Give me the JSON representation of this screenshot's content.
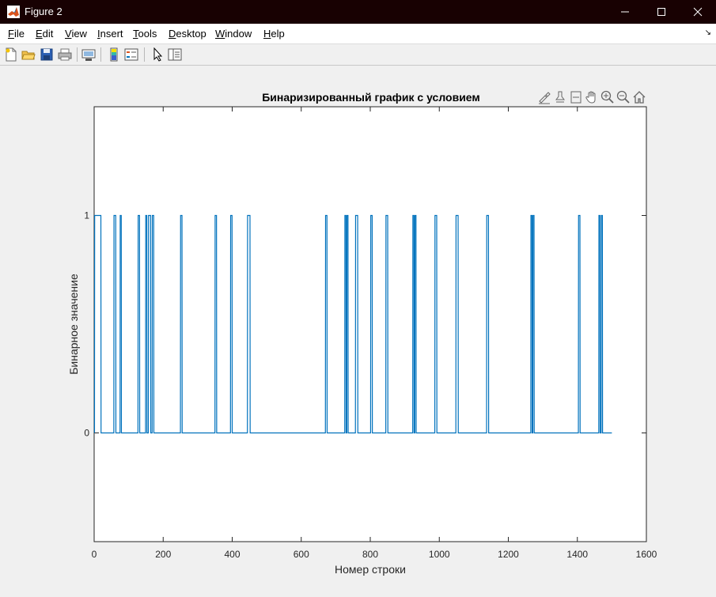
{
  "window": {
    "title": "Figure 2"
  },
  "menu": {
    "items": [
      {
        "label": "File",
        "key": "F",
        "rest": "ile"
      },
      {
        "label": "Edit",
        "key": "E",
        "rest": "dit"
      },
      {
        "label": "View",
        "key": "V",
        "rest": "iew"
      },
      {
        "label": "Insert",
        "key": "I",
        "rest": "nsert"
      },
      {
        "label": "Tools",
        "key": "T",
        "rest": "ools"
      },
      {
        "label": "Desktop",
        "key": "D",
        "rest": "esktop"
      },
      {
        "label": "Window",
        "key": "W",
        "rest": "indow"
      },
      {
        "label": "Help",
        "key": "H",
        "rest": "elp"
      }
    ]
  },
  "toolbar": {
    "icons": [
      "new-figure-icon",
      "open-file-icon",
      "save-icon",
      "print-icon",
      "link-plot-icon",
      "insert-colorbar-icon",
      "insert-legend-icon",
      "edit-plot-icon",
      "property-inspector-icon"
    ]
  },
  "axes_toolbar": {
    "icons": [
      "brush-icon",
      "data-tips-icon",
      "rotate-icon",
      "pan-icon",
      "zoom-in-icon",
      "zoom-out-icon",
      "home-icon"
    ]
  },
  "colors": {
    "line": "#0072bd",
    "axis": "#262626",
    "titlebar": "#180102"
  },
  "chart_data": {
    "type": "line",
    "title": "Бинаризированный график с условием",
    "xlabel": "Номер строки",
    "ylabel": "Бинарное значение",
    "xlim": [
      0,
      1600
    ],
    "ylim": [
      -0.5,
      1.5
    ],
    "xticks": [
      0,
      200,
      400,
      600,
      800,
      1000,
      1200,
      1400,
      1600
    ],
    "yticks": [
      0,
      1
    ],
    "grid": false,
    "legend": "none",
    "x_end": 1500,
    "pulses": [
      [
        1,
        20
      ],
      [
        57,
        63
      ],
      [
        75,
        79
      ],
      [
        127,
        132
      ],
      [
        149,
        153
      ],
      [
        157,
        164
      ],
      [
        168,
        173
      ],
      [
        250,
        255
      ],
      [
        350,
        355
      ],
      [
        395,
        400
      ],
      [
        444,
        452
      ],
      [
        670,
        675
      ],
      [
        726,
        730
      ],
      [
        732,
        736
      ],
      [
        757,
        764
      ],
      [
        801,
        806
      ],
      [
        845,
        851
      ],
      [
        923,
        927
      ],
      [
        929,
        933
      ],
      [
        987,
        993
      ],
      [
        1048,
        1055
      ],
      [
        1137,
        1143
      ],
      [
        1265,
        1269
      ],
      [
        1271,
        1275
      ],
      [
        1403,
        1408
      ],
      [
        1462,
        1466
      ],
      [
        1469,
        1473
      ]
    ]
  }
}
